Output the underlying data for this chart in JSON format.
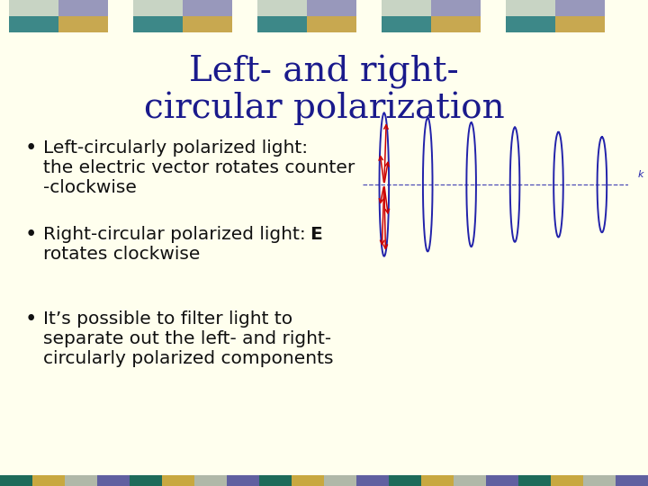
{
  "bg_color": "#ffffee",
  "title_line1": "Left- and right-",
  "title_line2": "circular polarization",
  "title_color": "#1a1a8c",
  "title_fontsize": 28,
  "bullet_color": "#111111",
  "bullet_fontsize": 14.5,
  "header_tile_colors": {
    "top_left": "#c8d4c4",
    "top_right": "#9898bb",
    "bot_left": "#3d8888",
    "bot_right": "#c8a850"
  },
  "footer_colors": [
    "#1e6b5a",
    "#c8a840",
    "#b0b8a8",
    "#6060a0",
    "#1e6b5a",
    "#c8a840",
    "#b0b8a8",
    "#6060a0",
    "#1e6b5a",
    "#c8a840",
    "#b0b8a8",
    "#6060a0",
    "#1e6b5a",
    "#c8a840",
    "#b0b8a8",
    "#6060a0",
    "#1e6b5a",
    "#c8a840",
    "#b0b8a8",
    "#6060a0"
  ],
  "helix_color": "#2222aa",
  "arrow_color": "#cc0000",
  "bullet_texts": [
    [
      "Left-circularly polarized light:",
      "the electric vector rotates counter",
      "-clockwise"
    ],
    [
      "Right-circular polarized light: E",
      "rotates clockwise"
    ],
    [
      "It’s possible to filter light to",
      "separate out the left- and right-",
      "circularly polarized components"
    ]
  ]
}
